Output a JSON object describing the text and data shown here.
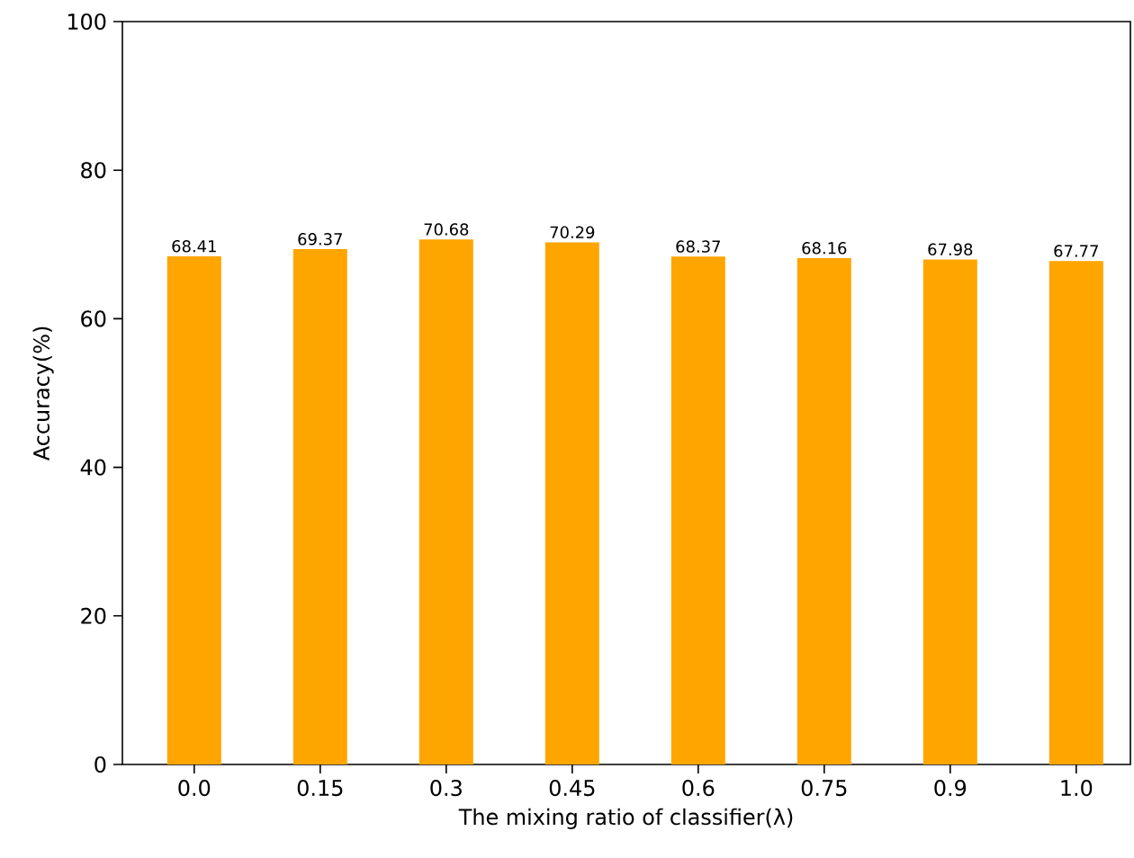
{
  "chart_data": {
    "type": "bar",
    "xlabel": "The mixing ratio of classifier(λ)",
    "ylabel": "Accuracy(%)",
    "categories": [
      "0.0",
      "0.15",
      "0.3",
      "0.45",
      "0.6",
      "0.75",
      "0.9",
      "1.0"
    ],
    "values": [
      68.41,
      69.37,
      70.68,
      70.29,
      68.37,
      68.16,
      67.98,
      67.77
    ],
    "color": "#ffa500",
    "ylim": [
      0,
      100
    ],
    "yticks": [
      0,
      20,
      40,
      60,
      80,
      100
    ],
    "data_labels": true
  }
}
